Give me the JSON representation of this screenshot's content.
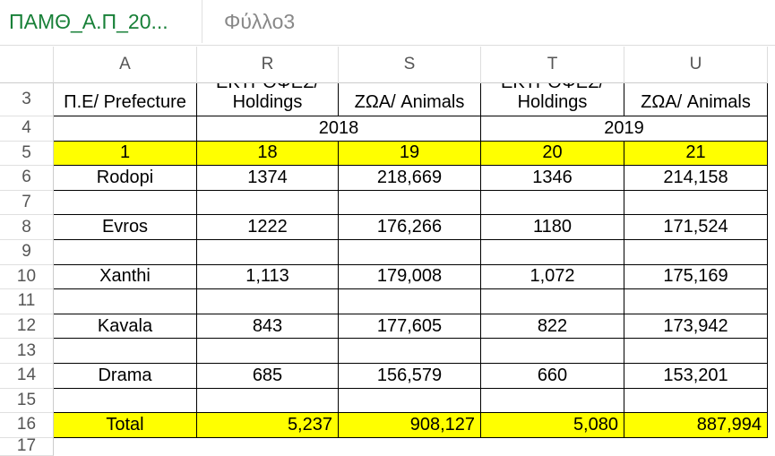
{
  "tabs": [
    "ΠΑΜΘ_Α.Π_20...",
    "Φύλλο3"
  ],
  "columns": [
    "A",
    "R",
    "S",
    "T",
    "U"
  ],
  "row_numbers": [
    3,
    4,
    5,
    6,
    7,
    8,
    9,
    10,
    11,
    12,
    13,
    14,
    15,
    16,
    17
  ],
  "header_row": [
    "Π.Ε/ Prefecture",
    "ΕΚΤΡΟΦΕΣ/ Holdings",
    "ΖΩΑ/ Animals",
    "ΕΚΤΡΟΦΕΣ/ Holdings",
    "ΖΩΑ/ Animals"
  ],
  "years": [
    "2018",
    "2019"
  ],
  "index_row": [
    "1",
    "18",
    "19",
    "20",
    "21"
  ],
  "data_rows": [
    [
      "Rodopi",
      "1374",
      "218,669",
      "1346",
      "214,158"
    ],
    [
      "Evros",
      "1222",
      "176,266",
      "1180",
      "171,524"
    ],
    [
      "Xanthi",
      "1,113",
      "179,008",
      "1,072",
      "175,169"
    ],
    [
      "Kavala",
      "843",
      "177,605",
      "822",
      "173,942"
    ],
    [
      "Drama",
      "685",
      "156,579",
      "660",
      "153,201"
    ]
  ],
  "total_row": [
    "Total",
    "5,237",
    "908,127",
    "5,080",
    "887,994"
  ]
}
